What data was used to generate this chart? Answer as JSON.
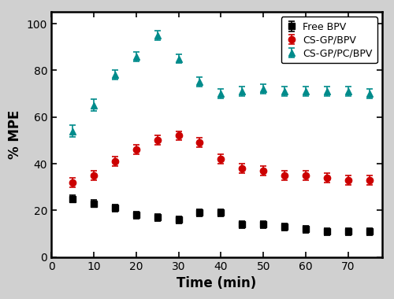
{
  "time": [
    5,
    10,
    15,
    20,
    25,
    30,
    35,
    40,
    45,
    50,
    55,
    60,
    65,
    70,
    75
  ],
  "free_bpv": [
    25,
    23,
    21,
    18,
    17,
    16,
    19,
    19,
    14,
    14,
    13,
    12,
    11,
    11,
    11
  ],
  "free_bpv_err": [
    1.5,
    1.5,
    1.5,
    1.5,
    1.5,
    1.5,
    1.5,
    1.5,
    1.5,
    1.5,
    1.5,
    1.5,
    1.5,
    1.5,
    1.5
  ],
  "cs_gp_bpv": [
    32,
    35,
    41,
    46,
    50,
    52,
    49,
    42,
    38,
    37,
    35,
    35,
    34,
    33,
    33
  ],
  "cs_gp_bpv_err": [
    2.0,
    2.0,
    2.0,
    2.0,
    2.0,
    2.0,
    2.0,
    2.0,
    2.0,
    2.0,
    2.0,
    2.0,
    2.0,
    2.0,
    2.0
  ],
  "cs_gp_pc_bpv": [
    54,
    65,
    78,
    86,
    95,
    85,
    75,
    70,
    71,
    72,
    71,
    71,
    71,
    71,
    70
  ],
  "cs_gp_pc_bpv_err": [
    2.5,
    2.5,
    2.0,
    2.0,
    2.0,
    2.0,
    2.0,
    2.0,
    2.0,
    2.0,
    2.0,
    2.0,
    2.0,
    2.0,
    2.0
  ],
  "xlabel": "Time (min)",
  "ylabel": "% MPE",
  "xlim": [
    0,
    78
  ],
  "ylim": [
    0,
    105
  ],
  "xticks": [
    0,
    10,
    20,
    30,
    40,
    50,
    60,
    70
  ],
  "yticks": [
    0,
    20,
    40,
    60,
    80,
    100
  ],
  "legend_labels": [
    "Free BPV",
    "CS-GP/BPV",
    "CS-GP/PC/BPV"
  ],
  "free_bpv_color": "#000000",
  "cs_gp_bpv_color": "#cc0000",
  "cs_gp_pc_bpv_color": "#008B8B",
  "bg_color": "#ffffff",
  "outer_bg": "#d0d0d0",
  "marker_size": 6,
  "elinewidth": 1.2,
  "capsize": 3,
  "capthick": 1.2,
  "xlabel_fontsize": 12,
  "ylabel_fontsize": 12,
  "legend_fontsize": 9,
  "tick_fontsize": 10,
  "spine_linewidth": 1.8
}
